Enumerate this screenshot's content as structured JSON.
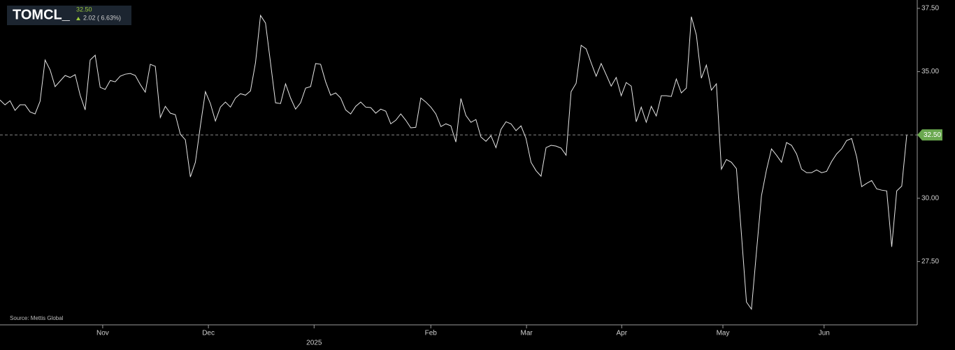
{
  "header": {
    "symbol": "TOMCL_",
    "price": "32.50",
    "change": "2.02 ( 6.63%)"
  },
  "source": "Source: Mettis Global",
  "chart_data": {
    "type": "line",
    "color": "#e6e6e6",
    "last_label": "32.50",
    "last_label_color": "#6aa84f",
    "values": [
      33.88,
      33.69,
      33.85,
      33.47,
      33.69,
      33.69,
      33.41,
      33.33,
      33.83,
      35.46,
      35.07,
      34.41,
      34.63,
      34.85,
      34.77,
      34.88,
      34.07,
      33.49,
      35.46,
      35.65,
      34.38,
      34.3,
      34.65,
      34.6,
      34.82,
      34.9,
      34.93,
      34.85,
      34.49,
      34.19,
      35.29,
      35.21,
      33.19,
      33.63,
      33.36,
      33.3,
      32.53,
      32.31,
      30.84,
      31.42,
      32.86,
      34.21,
      33.74,
      33.05,
      33.6,
      33.8,
      33.6,
      33.96,
      34.13,
      34.07,
      34.24,
      35.35,
      37.22,
      36.92,
      35.35,
      33.77,
      33.74,
      34.52,
      33.96,
      33.52,
      33.77,
      34.35,
      34.41,
      35.32,
      35.29,
      34.6,
      34.07,
      34.16,
      33.96,
      33.49,
      33.33,
      33.63,
      33.8,
      33.6,
      33.58,
      33.36,
      33.52,
      33.44,
      32.94,
      33.08,
      33.33,
      33.08,
      32.78,
      32.8,
      33.96,
      33.8,
      33.6,
      33.33,
      32.83,
      32.94,
      32.86,
      32.22,
      33.94,
      33.27,
      33.0,
      33.11,
      32.42,
      32.25,
      32.47,
      32.0,
      32.72,
      33.02,
      32.94,
      32.67,
      32.86,
      32.36,
      31.42,
      31.09,
      30.87,
      32.0,
      32.09,
      32.06,
      31.98,
      31.7,
      34.21,
      34.54,
      36.04,
      35.9,
      35.35,
      34.82,
      35.32,
      34.88,
      34.43,
      34.77,
      34.05,
      34.57,
      34.43,
      33.02,
      33.6,
      33.0,
      33.63,
      33.25,
      34.05,
      34.05,
      34.02,
      34.71,
      34.16,
      34.35,
      37.17,
      36.45,
      34.74,
      35.26,
      34.27,
      34.52,
      31.15,
      31.53,
      31.42,
      31.17,
      28.58,
      25.9,
      25.62,
      27.89,
      30.1,
      31.12,
      31.95,
      31.7,
      31.42,
      32.2,
      32.09,
      31.75,
      31.15,
      31.01,
      31.01,
      31.12,
      31.01,
      31.06,
      31.45,
      31.75,
      31.95,
      32.28,
      32.36,
      31.64,
      30.46,
      30.59,
      30.7,
      30.37,
      30.32,
      30.29,
      28.08,
      30.29,
      30.48,
      32.5
    ],
    "xticks": [
      {
        "value": 20.5,
        "label": "Nov"
      },
      {
        "value": 41.6,
        "label": "Dec"
      },
      {
        "value": 62.7,
        "label": "2025"
      },
      {
        "value": 86,
        "label": "Feb"
      },
      {
        "value": 105.1,
        "label": "Mar"
      },
      {
        "value": 124.1,
        "label": "Apr"
      },
      {
        "value": 144.3,
        "label": "May"
      },
      {
        "value": 164.5,
        "label": "Jun"
      }
    ],
    "ylim": [
      25,
      37.83
    ],
    "yticks": [
      {
        "value": 27.5,
        "label": "27.50"
      },
      {
        "value": 30,
        "label": "30.00"
      },
      {
        "value": 32.5,
        "label": "32.50"
      },
      {
        "value": 35,
        "label": "35.00"
      },
      {
        "value": 37.5,
        "label": "37.50"
      }
    ]
  }
}
